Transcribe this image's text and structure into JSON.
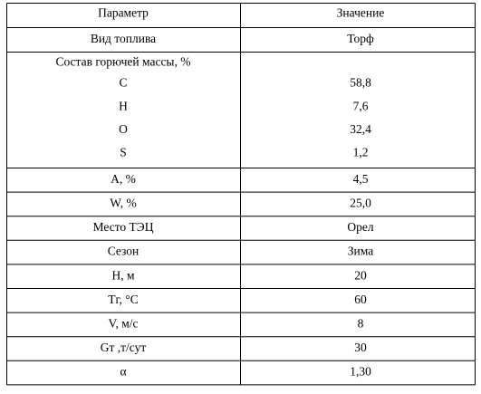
{
  "table": {
    "header": [
      "Параметр",
      "Значение"
    ],
    "rows": [
      [
        "Вид топлива",
        "Торф"
      ],
      {
        "label": "Состав горючей массы, %",
        "items": [
          [
            "C",
            "58,8"
          ],
          [
            "H",
            "7,6"
          ],
          [
            "O",
            "32,4"
          ],
          [
            "S",
            "1,2"
          ]
        ]
      },
      [
        "A, %",
        "4,5"
      ],
      [
        "W, %",
        "25,0"
      ],
      [
        "Место ТЭЦ",
        "Орел"
      ],
      [
        "Сезон",
        "Зима"
      ],
      [
        "H, м",
        "20"
      ],
      [
        "Tг, °С",
        "60"
      ],
      [
        "V, м/с",
        "8"
      ],
      [
        "Gт ,т/сут",
        "30"
      ],
      [
        "α",
        "1,30"
      ]
    ]
  }
}
